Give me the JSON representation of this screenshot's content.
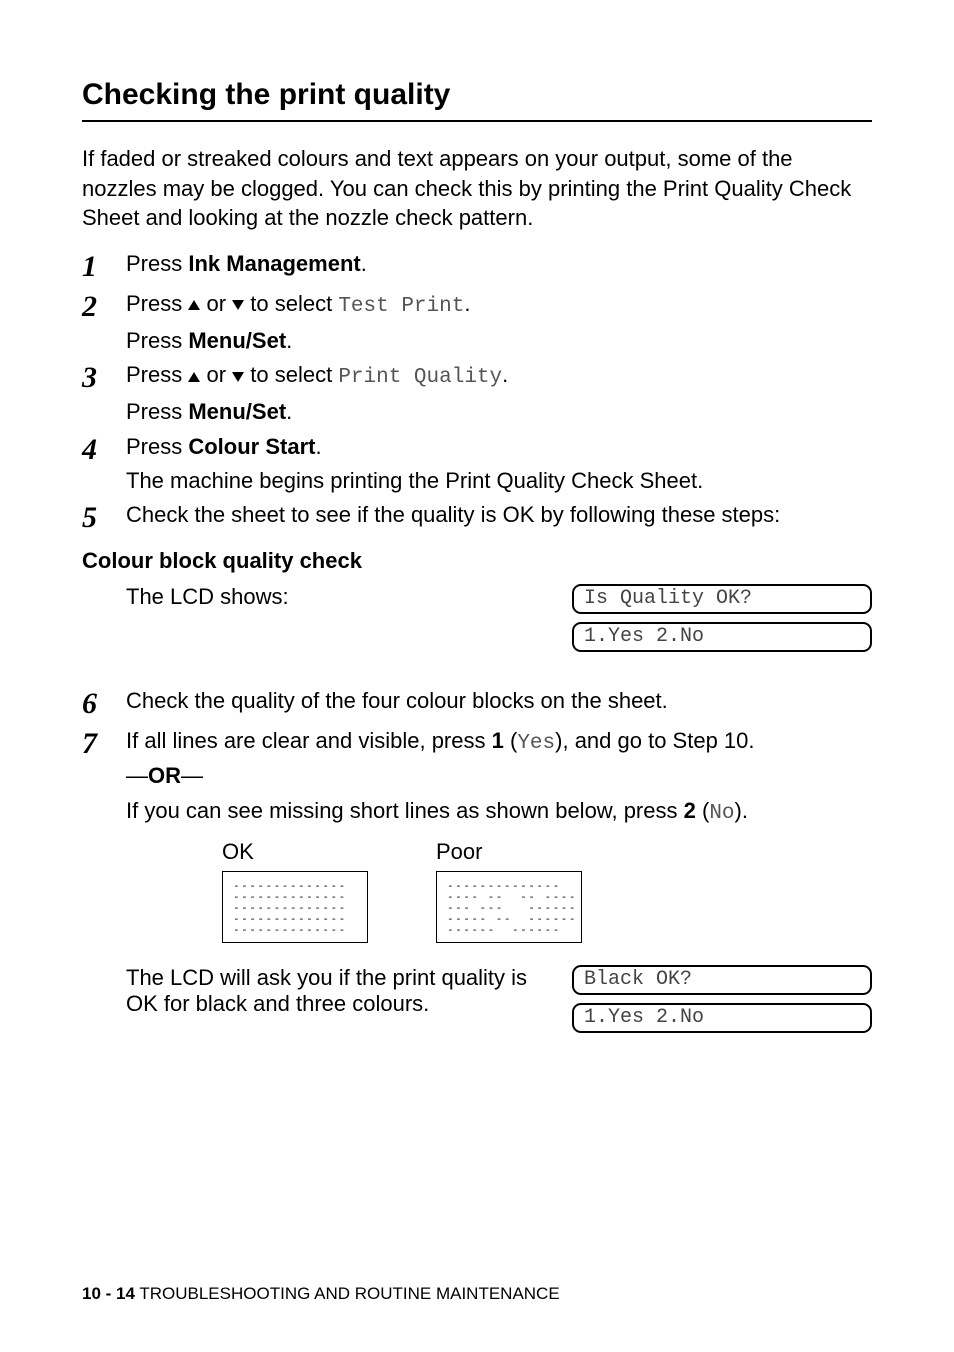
{
  "section_title": "Checking the print quality",
  "intro": "If faded or streaked colours and text appears on your output, some of the nozzles may be clogged. You can check this by printing the Print Quality Check Sheet and looking at the nozzle check pattern.",
  "steps": {
    "s1_a": "Press ",
    "s1_b": "Ink Management",
    "s1_c": ".",
    "s2_a": "Press ",
    "s2_b": " or ",
    "s2_c": " to select ",
    "s2_mono": "Test Print",
    "s2_d": ".",
    "s2_sub_a": "Press ",
    "s2_sub_b": "Menu/Set",
    "s2_sub_c": ".",
    "s3_a": "Press ",
    "s3_b": " or ",
    "s3_c": " to select ",
    "s3_mono": "Print Quality",
    "s3_d": ".",
    "s3_sub_a": "Press ",
    "s3_sub_b": "Menu/Set",
    "s3_sub_c": ".",
    "s4_a": "Press ",
    "s4_b": "Colour Start",
    "s4_c": ".",
    "s4_sub": "The machine begins printing the Print Quality Check Sheet.",
    "s5": "Check the sheet to see if the quality is OK by following these steps:",
    "s6": "Check the quality of the four colour blocks on the sheet.",
    "s7_a": "If all lines are clear and visible, press ",
    "s7_b": "1",
    "s7_c": " (",
    "s7_mono1": "Yes",
    "s7_d": "), and go to Step 10.",
    "s7_or_a": "—",
    "s7_or_b": "OR",
    "s7_or_c": "—",
    "s7_e": "If you can see missing short lines as shown below, press ",
    "s7_f": "2",
    "s7_g": " (",
    "s7_mono2": "No",
    "s7_h": ")."
  },
  "subhead": "Colour block quality check",
  "lcd1_text": "The LCD shows:",
  "lcd1_line1": "Is Quality OK?",
  "lcd1_line2": "1.Yes 2.No",
  "pattern": {
    "ok_label": "OK",
    "poor_label": "Poor",
    "ok_rows": [
      "--------------",
      "--------------",
      "--------------",
      "--------------",
      "--------------"
    ],
    "poor_rows": [
      "--------------",
      "---- --  -- ----",
      "--- ---   ------",
      "----- --  ------",
      "------  ------"
    ]
  },
  "lcd2_text": "The LCD will ask you if the print quality is OK for black and three colours.",
  "lcd2_line1": "Black OK?",
  "lcd2_line2": "1.Yes 2.No",
  "footer": {
    "page": "10 - 14",
    "chapter": "   TROUBLESHOOTING AND ROUTINE MAINTENANCE"
  }
}
